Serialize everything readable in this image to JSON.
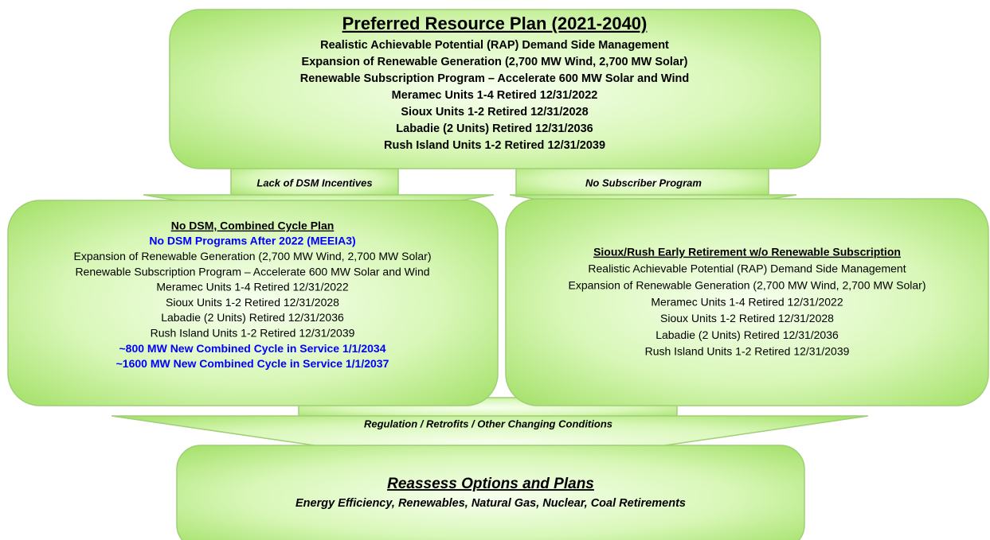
{
  "nodes": {
    "top": {
      "title": "Preferred Resource Plan (2021-2040)",
      "lines": [
        "Realistic Achievable Potential (RAP) Demand Side Management",
        "Expansion of Renewable Generation (2,700 MW Wind, 2,700 MW Solar)",
        "Renewable Subscription Program – Accelerate 600 MW Solar and Wind",
        "Meramec Units 1-4 Retired 12/31/2022",
        "Sioux Units 1-2 Retired 12/31/2028",
        "Labadie (2 Units) Retired 12/31/2036",
        "Rush Island Units 1-2 Retired 12/31/2039"
      ]
    },
    "left": {
      "title": "No DSM, Combined Cycle Plan",
      "lines": [
        "No DSM Programs After 2022 (MEEIA3)",
        "Expansion of Renewable Generation (2,700 MW Wind, 2,700 MW Solar)",
        "Renewable Subscription Program – Accelerate 600 MW Solar and Wind",
        "Meramec Units 1-4 Retired 12/31/2022",
        "Sioux Units 1-2 Retired 12/31/2028",
        "Labadie (2 Units) Retired 12/31/2036",
        "Rush Island Units 1-2 Retired 12/31/2039",
        "~800 MW New Combined Cycle in Service 1/1/2034",
        "~1600 MW New Combined Cycle in Service 1/1/2037"
      ]
    },
    "right": {
      "title": "Sioux/Rush Early Retirement w/o Renewable Subscription",
      "lines": [
        "Realistic Achievable Potential (RAP) Demand Side Management",
        "Expansion of Renewable Generation (2,700 MW Wind, 2,700 MW Solar)",
        "Meramec Units 1-4 Retired 12/31/2022",
        "Sioux Units 1-2 Retired 12/31/2028",
        "Labadie (2 Units) Retired 12/31/2036",
        "Rush Island Units 1-2 Retired 12/31/2039"
      ]
    },
    "bottom": {
      "title": "Reassess Options and Plans",
      "lines": [
        "Energy Efficiency,  Renewables, Natural Gas, Nuclear, Coal Retirements"
      ]
    }
  },
  "edges": {
    "left": "Lack of DSM Incentives",
    "right": "No Subscriber Program",
    "bottom": "Regulation / Retrofits / Other Changing Conditions"
  }
}
